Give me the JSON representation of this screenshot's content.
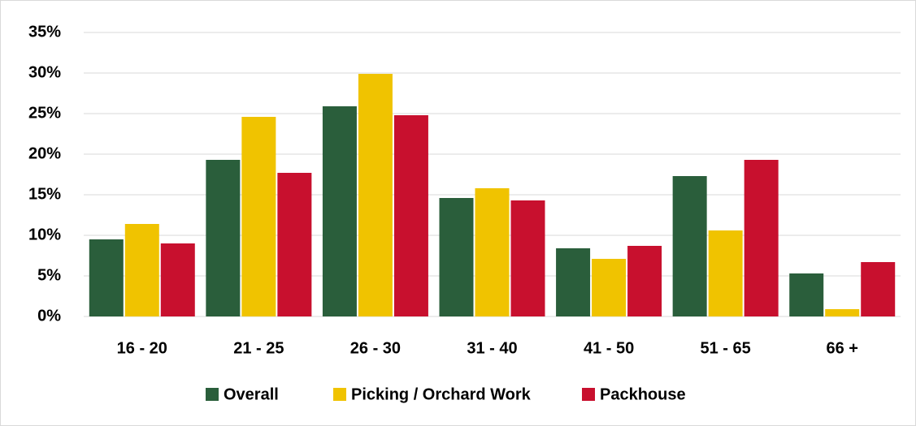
{
  "chart_data": {
    "type": "bar",
    "categories": [
      "16 - 20",
      "21 - 25",
      "26 - 30",
      "31 - 40",
      "41 - 50",
      "51 - 65",
      "66 +"
    ],
    "series": [
      {
        "name": "Overall",
        "color": "#2a5e3b",
        "values": [
          9.5,
          19.3,
          25.9,
          14.6,
          8.4,
          17.3,
          5.3
        ]
      },
      {
        "name": "Picking / Orchard Work",
        "color": "#f0c300",
        "values": [
          11.4,
          24.6,
          29.9,
          15.8,
          7.1,
          10.6,
          0.9
        ]
      },
      {
        "name": "Packhouse",
        "color": "#c8102e",
        "values": [
          9.0,
          17.7,
          24.8,
          14.3,
          8.7,
          19.3,
          6.7
        ]
      }
    ],
    "ylim": [
      0,
      35
    ],
    "yticks": [
      {
        "value": 0,
        "label": "0%"
      },
      {
        "value": 5,
        "label": "5%"
      },
      {
        "value": 10,
        "label": "10%"
      },
      {
        "value": 15,
        "label": "15%"
      },
      {
        "value": 20,
        "label": "20%"
      },
      {
        "value": 25,
        "label": "25%"
      },
      {
        "value": 30,
        "label": "30%"
      },
      {
        "value": 35,
        "label": "35%"
      }
    ],
    "grid": true,
    "legend": "bottom"
  }
}
